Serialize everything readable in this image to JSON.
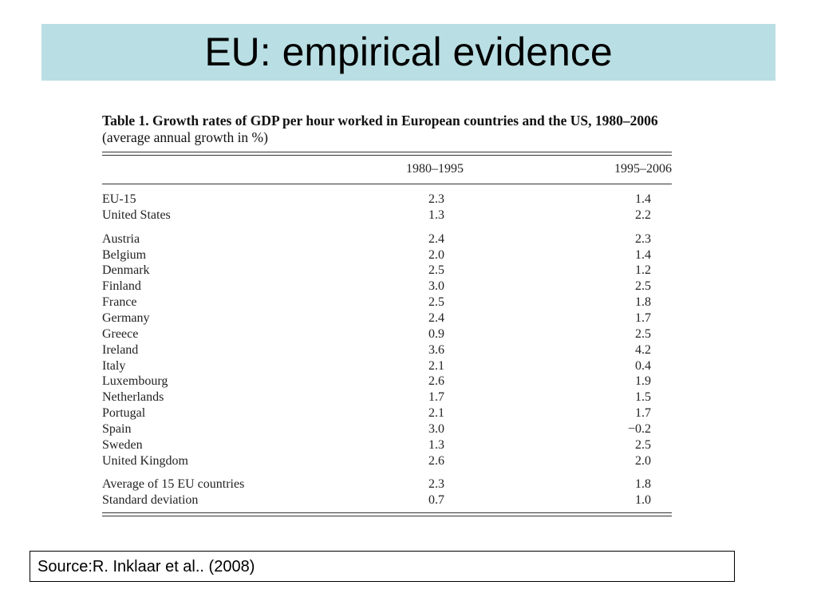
{
  "title": "EU: empirical evidence",
  "table": {
    "caption_bold": "Table 1.  Growth rates of GDP per hour worked in European countries and the US, 1980–2006",
    "caption_rest": "(average annual growth in %)",
    "headers": [
      "1980–1995",
      "1995–2006"
    ],
    "groups": [
      [
        [
          "EU-15",
          "2.3",
          "1.4"
        ],
        [
          "United States",
          "1.3",
          "2.2"
        ]
      ],
      [
        [
          "Austria",
          "2.4",
          "2.3"
        ],
        [
          "Belgium",
          "2.0",
          "1.4"
        ],
        [
          "Denmark",
          "2.5",
          "1.2"
        ],
        [
          "Finland",
          "3.0",
          "2.5"
        ],
        [
          "France",
          "2.5",
          "1.8"
        ],
        [
          "Germany",
          "2.4",
          "1.7"
        ],
        [
          "Greece",
          "0.9",
          "2.5"
        ],
        [
          "Ireland",
          "3.6",
          "4.2"
        ],
        [
          "Italy",
          "2.1",
          "0.4"
        ],
        [
          "Luxembourg",
          "2.6",
          "1.9"
        ],
        [
          "Netherlands",
          "1.7",
          "1.5"
        ],
        [
          "Portugal",
          "2.1",
          "1.7"
        ],
        [
          "Spain",
          "3.0",
          "−0.2"
        ],
        [
          "Sweden",
          "1.3",
          "2.5"
        ],
        [
          "United Kingdom",
          "2.6",
          "2.0"
        ]
      ],
      [
        [
          "Average of 15 EU countries",
          "2.3",
          "1.8"
        ],
        [
          "Standard deviation",
          "0.7",
          "1.0"
        ]
      ]
    ]
  },
  "source": "Source:R. Inklaar et al.. (2008)"
}
